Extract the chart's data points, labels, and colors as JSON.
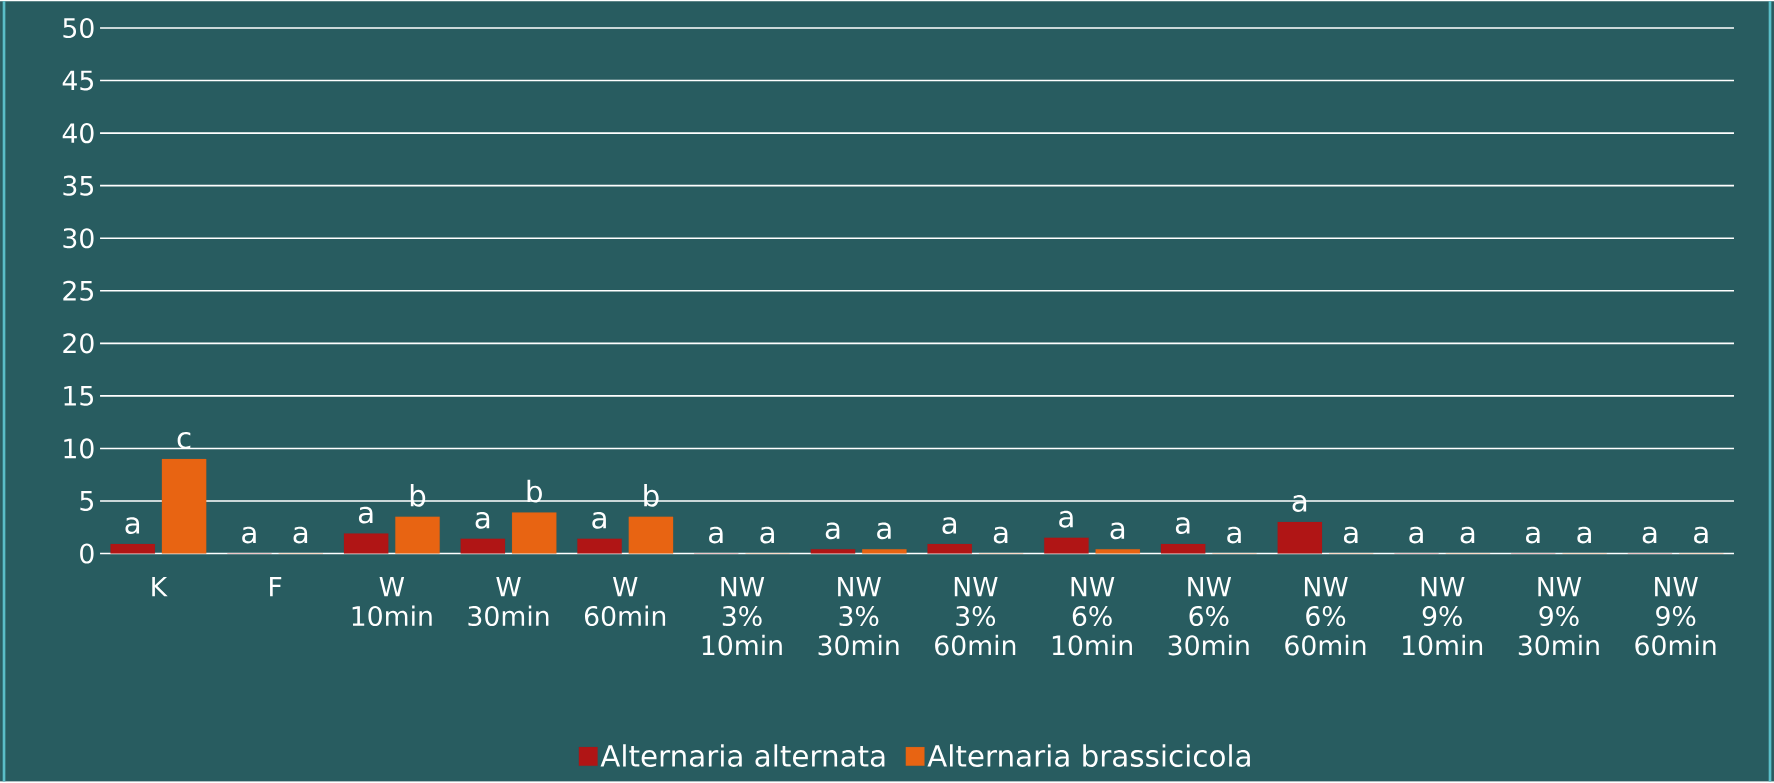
{
  "chart_data": {
    "type": "bar",
    "categories": [
      "K",
      "F",
      "W 10min",
      "W 30min",
      "W 60min",
      "NW 3% 10min",
      "NW 3% 30min",
      "NW 3% 60min",
      "NW 6% 10min",
      "NW 6% 30min",
      "NW 6% 60min",
      "NW 9% 10min",
      "NW 9% 30min",
      "NW 9% 60min"
    ],
    "series": [
      {
        "name": "Alternaria alternata",
        "color": "#b01515",
        "values": [
          0.9,
          0,
          1.9,
          1.4,
          1.4,
          0,
          0.4,
          0.9,
          1.5,
          0.9,
          3.0,
          0,
          0,
          0
        ],
        "value_labels": [
          "a",
          "a",
          "a",
          "a",
          "a",
          "a",
          "a",
          "a",
          "a",
          "a",
          "a",
          "a",
          "a",
          "a"
        ]
      },
      {
        "name": "Alternaria brassicicola",
        "color": "#e86412",
        "values": [
          9,
          0,
          3.5,
          3.9,
          3.5,
          0,
          0.4,
          0,
          0.4,
          0,
          0,
          0,
          0,
          0
        ],
        "value_labels": [
          "c",
          "a",
          "b",
          "b",
          "b",
          "a",
          "a",
          "a",
          "a",
          "a",
          "a",
          "a",
          "a",
          "a"
        ]
      }
    ],
    "ylim": [
      0,
      50
    ],
    "yticks": [
      0,
      5,
      10,
      15,
      20,
      25,
      30,
      35,
      40,
      45,
      50
    ],
    "grid": "y",
    "legend": "bottom"
  }
}
